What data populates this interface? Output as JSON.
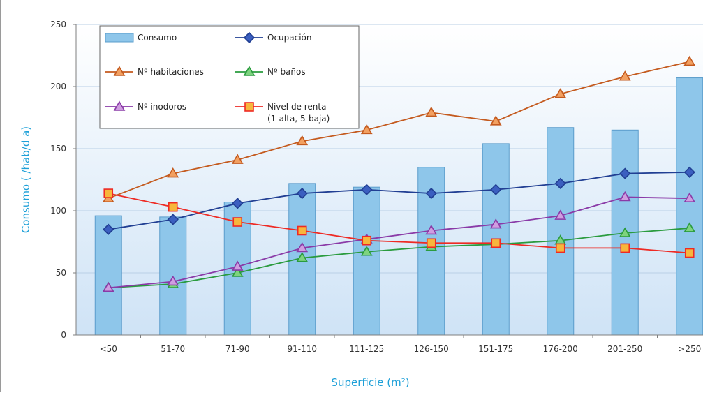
{
  "chart_data": {
    "type": "bar",
    "xlabel": "Superficie (m²)",
    "ylabel": "Consumo ( /hab/d a)",
    "ylim": [
      0,
      250
    ],
    "yticks": [
      0,
      50,
      100,
      150,
      200,
      250
    ],
    "grid": true,
    "legend_position": "top-left",
    "categories": [
      "<50",
      "51-70",
      "71-90",
      "91-110",
      "111-125",
      "126-150",
      "151-175",
      "176-200",
      "201-250",
      ">250"
    ],
    "series": [
      {
        "name": "Consumo",
        "kind": "bar",
        "color": "#8ec6ea",
        "border": "#5a9ccb",
        "values": [
          96,
          95,
          107,
          122,
          119,
          135,
          154,
          167,
          165,
          207
        ]
      },
      {
        "name": "Ocupación",
        "kind": "line",
        "marker": "diamond",
        "color": "#213f93",
        "fill": "#3b5fc0",
        "values": [
          85,
          93,
          106,
          114,
          117,
          114,
          117,
          122,
          130,
          131
        ]
      },
      {
        "name": "Nº habitaciones",
        "kind": "line",
        "marker": "triangle",
        "color": "#c45a1e",
        "fill": "#f2a061",
        "values": [
          110,
          130,
          141,
          156,
          165,
          179,
          172,
          194,
          208,
          220
        ]
      },
      {
        "name": "Nº baños",
        "kind": "line",
        "marker": "triangle",
        "color": "#2a9b3e",
        "fill": "#7ed37f",
        "values": [
          38,
          41,
          50,
          62,
          67,
          71,
          73,
          76,
          82,
          86
        ]
      },
      {
        "name": "Nº inodoros",
        "kind": "line",
        "marker": "triangle",
        "color": "#8a3aa7",
        "fill": "#cf9ee0",
        "values": [
          38,
          43,
          55,
          70,
          77,
          84,
          89,
          96,
          111,
          110
        ]
      },
      {
        "name": "Nivel de renta\n(1-alta, 5-baja)",
        "kind": "line",
        "marker": "square",
        "color": "#ee2a24",
        "fill": "#f7b63c",
        "values": [
          114,
          103,
          91,
          84,
          76,
          74,
          74,
          70,
          70,
          66
        ]
      }
    ]
  },
  "colors": {
    "plot_bg_top": "#ffffff",
    "plot_bg_bottom": "#cfe3f6",
    "gridline": "#b9cfe6",
    "axis_title": "#1ea0d8"
  }
}
